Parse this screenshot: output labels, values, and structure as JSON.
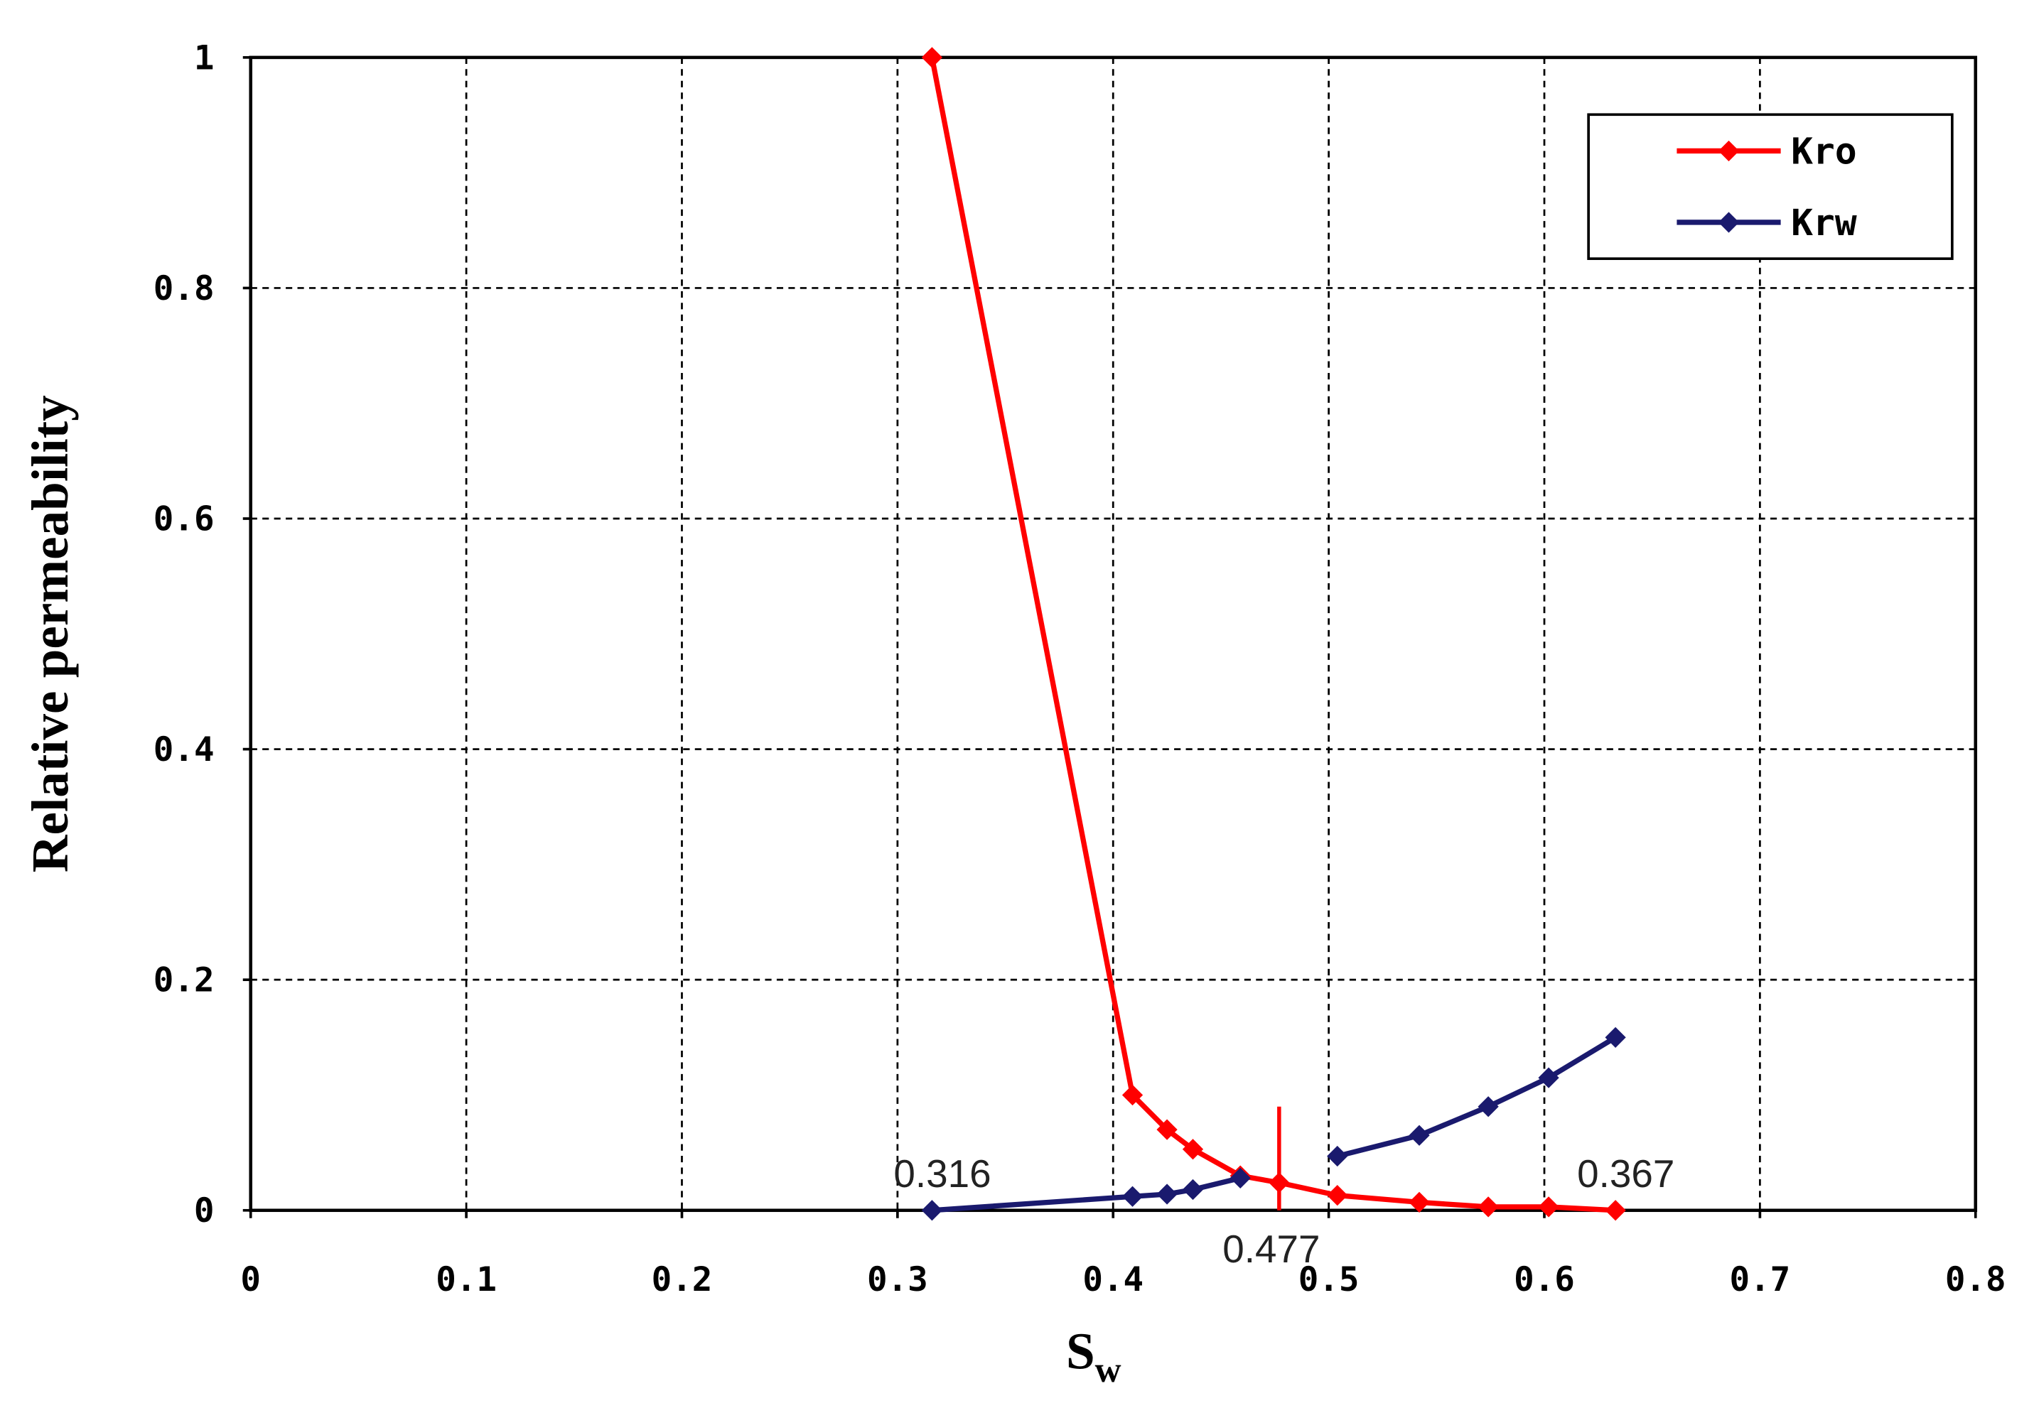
{
  "chart_data": {
    "type": "line",
    "xlabel": [
      "S",
      "w"
    ],
    "ylabel": "Relative permeability",
    "x": [
      0.316,
      0.409,
      0.425,
      0.437,
      0.459,
      0.477,
      0.504,
      0.542,
      0.574,
      0.602,
      0.633
    ],
    "series": [
      {
        "name": "Kro",
        "color": "#ff0000",
        "values": [
          1,
          0.1,
          0.07,
          0.053,
          0.03,
          0.024,
          0.013,
          0.007,
          0.003,
          0.003,
          0
        ]
      },
      {
        "name": "Krw",
        "color": "#1a1a6e",
        "values": [
          0,
          0.012,
          0.014,
          0.018,
          0.028,
          null,
          0.047,
          0.065,
          0.09,
          0.115,
          0.15
        ]
      }
    ],
    "xlim": [
      0,
      0.8
    ],
    "xticks": [
      0,
      0.1,
      0.2,
      0.3,
      0.4,
      0.5,
      0.6,
      0.7,
      0.8
    ],
    "ylim": [
      0,
      1
    ],
    "yticks": [
      0,
      0.2,
      0.4,
      0.6,
      0.8,
      1
    ],
    "grid": true,
    "legend": "top-right",
    "annotations": [
      {
        "text": "0.316",
        "x": 0.316,
        "y": 0
      },
      {
        "text": "0.367",
        "x": 0.633,
        "y": 0
      },
      {
        "text": "0.477",
        "x": 0.477,
        "y": 0,
        "line_to": 0.09
      }
    ]
  }
}
